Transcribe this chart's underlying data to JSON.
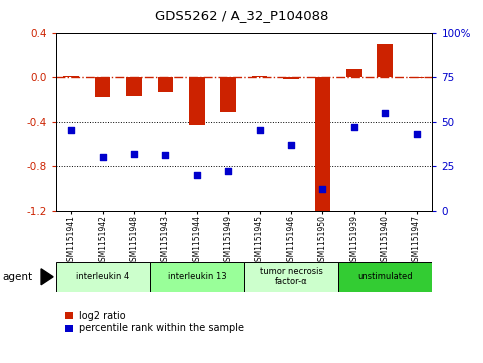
{
  "title": "GDS5262 / A_32_P104088",
  "samples": [
    "GSM1151941",
    "GSM1151942",
    "GSM1151948",
    "GSM1151943",
    "GSM1151944",
    "GSM1151949",
    "GSM1151945",
    "GSM1151946",
    "GSM1151950",
    "GSM1151939",
    "GSM1151940",
    "GSM1151947"
  ],
  "log2_ratio": [
    0.01,
    -0.18,
    -0.17,
    -0.13,
    -0.43,
    -0.31,
    0.01,
    -0.02,
    -1.28,
    0.07,
    0.3,
    -0.01
  ],
  "percentile_rank": [
    45,
    30,
    32,
    31,
    20,
    22,
    45,
    37,
    12,
    47,
    55,
    43
  ],
  "ylim_left": [
    -1.2,
    0.4
  ],
  "ylim_right": [
    0,
    100
  ],
  "yticks_left": [
    -1.2,
    -0.8,
    -0.4,
    0.0,
    0.4
  ],
  "yticks_right": [
    0,
    25,
    50,
    75,
    100
  ],
  "hlines": [
    -0.4,
    -0.8
  ],
  "bar_color": "#cc2200",
  "dot_color": "#0000cc",
  "dashed_line_color": "#cc2200",
  "groups": [
    {
      "label": "interleukin 4",
      "start": 0,
      "end": 3,
      "color": "#ccffcc"
    },
    {
      "label": "interleukin 13",
      "start": 3,
      "end": 6,
      "color": "#99ff99"
    },
    {
      "label": "tumor necrosis\nfactor-α",
      "start": 6,
      "end": 9,
      "color": "#ccffcc"
    },
    {
      "label": "unstimulated",
      "start": 9,
      "end": 12,
      "color": "#33cc33"
    }
  ],
  "legend_bar_label": "log2 ratio",
  "legend_dot_label": "percentile rank within the sample",
  "agent_label": "agent",
  "bg_color": "#ffffff"
}
